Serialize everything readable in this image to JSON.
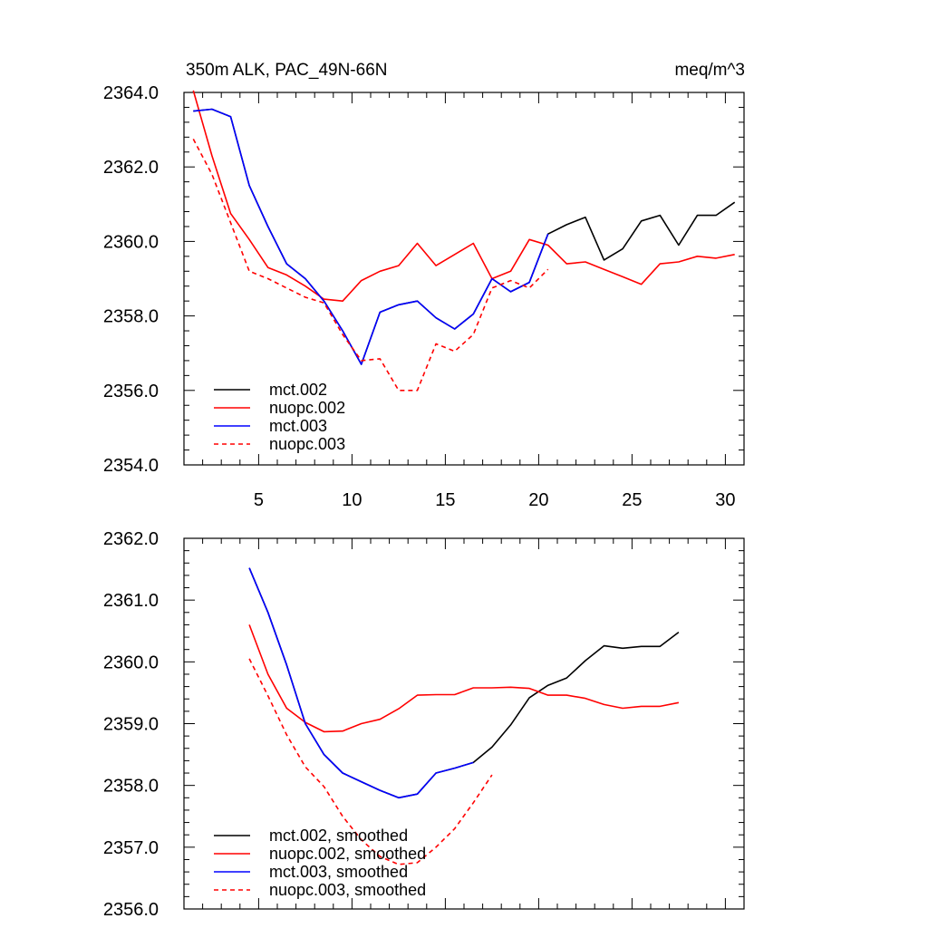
{
  "chart_data": [
    {
      "type": "line",
      "title": "350m ALK, PAC_49N-66N",
      "units": "meq/m^3",
      "xlabel": "",
      "ylabel": "",
      "xlim": [
        1,
        31
      ],
      "ylim": [
        2354.0,
        2364.0
      ],
      "xticks": [
        5,
        10,
        15,
        20,
        25,
        30
      ],
      "xticklabels": [
        "5",
        "10",
        "15",
        "20",
        "25",
        "30"
      ],
      "yticks": [
        2354.0,
        2356.0,
        2358.0,
        2360.0,
        2362.0,
        2364.0
      ],
      "yticklabels": [
        "2354.0",
        "2356.0",
        "2358.0",
        "2360.0",
        "2362.0",
        "2364.0"
      ],
      "legend_position": "bottom-left",
      "grid": false,
      "series": [
        {
          "name": "mct.002",
          "color": "#000000",
          "dash": "solid",
          "x": [
            1.5,
            2.5,
            3.5,
            4.5,
            5.5,
            6.5,
            7.5,
            8.5,
            9.5,
            10.5,
            11.5,
            12.5,
            13.5,
            14.5,
            15.5,
            16.5,
            17.5,
            18.5,
            19.5,
            20.5,
            21.5,
            22.5,
            23.5,
            24.5,
            25.5,
            26.5,
            27.5,
            28.5,
            29.5,
            30.5
          ],
          "y": [
            2363.5,
            2363.55,
            2363.35,
            2361.5,
            2360.4,
            2359.4,
            2359.0,
            2358.4,
            2357.6,
            2356.7,
            2358.1,
            2358.3,
            2358.4,
            2357.95,
            2357.65,
            2358.05,
            2359.0,
            2358.65,
            2358.9,
            2360.2,
            2360.45,
            2360.65,
            2359.5,
            2359.8,
            2360.55,
            2360.7,
            2359.9,
            2360.7,
            2360.7,
            2361.05
          ]
        },
        {
          "name": "nuopc.002",
          "color": "#ff0000",
          "dash": "solid",
          "x": [
            1.5,
            2.5,
            3.5,
            4.5,
            5.5,
            6.5,
            7.5,
            8.5,
            9.5,
            10.5,
            11.5,
            12.5,
            13.5,
            14.5,
            15.5,
            16.5,
            17.5,
            18.5,
            19.5,
            20.5,
            21.5,
            22.5,
            23.5,
            24.5,
            25.5,
            26.5,
            27.5,
            28.5,
            29.5,
            30.5
          ],
          "y": [
            2364.05,
            2362.3,
            2360.75,
            2360.05,
            2359.3,
            2359.1,
            2358.8,
            2358.45,
            2358.4,
            2358.95,
            2359.2,
            2359.35,
            2359.95,
            2359.35,
            2359.65,
            2359.95,
            2359.0,
            2359.2,
            2360.05,
            2359.9,
            2359.4,
            2359.45,
            2359.25,
            2359.05,
            2358.85,
            2359.4,
            2359.45,
            2359.6,
            2359.55,
            2359.65
          ]
        },
        {
          "name": "mct.003",
          "color": "#0000ff",
          "dash": "solid",
          "x": [
            1.5,
            2.5,
            3.5,
            4.5,
            5.5,
            6.5,
            7.5,
            8.5,
            9.5,
            10.5,
            11.5,
            12.5,
            13.5,
            14.5,
            15.5,
            16.5,
            17.5,
            18.5,
            19.5,
            20.5
          ],
          "y": [
            2363.5,
            2363.55,
            2363.35,
            2361.5,
            2360.4,
            2359.4,
            2359.0,
            2358.4,
            2357.6,
            2356.7,
            2358.1,
            2358.3,
            2358.4,
            2357.95,
            2357.65,
            2358.05,
            2359.0,
            2358.65,
            2358.9,
            2360.2
          ]
        },
        {
          "name": "nuopc.003",
          "color": "#ff0000",
          "dash": "dashed",
          "x": [
            1.5,
            2.5,
            3.5,
            4.5,
            5.5,
            6.5,
            7.5,
            8.5,
            9.5,
            10.5,
            11.5,
            12.5,
            13.5,
            14.5,
            15.5,
            16.5,
            17.5,
            18.5,
            19.5,
            20.5
          ],
          "y": [
            2362.75,
            2361.8,
            2360.5,
            2359.2,
            2359.0,
            2358.75,
            2358.5,
            2358.35,
            2357.5,
            2356.8,
            2356.85,
            2356.0,
            2356.0,
            2357.25,
            2357.05,
            2357.5,
            2358.75,
            2358.95,
            2358.75,
            2359.25
          ]
        }
      ]
    },
    {
      "type": "line",
      "title": "",
      "xlabel": "",
      "ylabel": "",
      "xlim": [
        1,
        31
      ],
      "ylim": [
        2356.0,
        2362.0
      ],
      "xticks": [
        5,
        10,
        15,
        20,
        25,
        30
      ],
      "xticklabels": [],
      "yticks": [
        2356.0,
        2357.0,
        2358.0,
        2359.0,
        2360.0,
        2361.0,
        2362.0
      ],
      "yticklabels": [
        "2356.0",
        "2357.0",
        "2358.0",
        "2359.0",
        "2360.0",
        "2361.0",
        "2362.0"
      ],
      "legend_position": "bottom-left",
      "grid": false,
      "series": [
        {
          "name": "mct.002, smoothed",
          "color": "#000000",
          "dash": "solid",
          "x": [
            4.5,
            5.5,
            6.5,
            7.5,
            8.5,
            9.5,
            10.5,
            11.5,
            12.5,
            13.5,
            14.5,
            15.5,
            16.5,
            17.5,
            18.5,
            19.5,
            20.5,
            21.5,
            22.5,
            23.5,
            24.5,
            25.5,
            26.5,
            27.5
          ],
          "y": [
            2361.52,
            2360.8,
            2359.95,
            2359.0,
            2358.5,
            2358.2,
            2358.06,
            2357.92,
            2357.8,
            2357.86,
            2358.2,
            2358.28,
            2358.37,
            2358.62,
            2358.98,
            2359.42,
            2359.62,
            2359.74,
            2360.02,
            2360.26,
            2360.22,
            2360.25,
            2360.25,
            2360.48
          ]
        },
        {
          "name": "nuopc.002, smoothed",
          "color": "#ff0000",
          "dash": "solid",
          "x": [
            4.5,
            5.5,
            6.5,
            7.5,
            8.5,
            9.5,
            10.5,
            11.5,
            12.5,
            13.5,
            14.5,
            15.5,
            16.5,
            17.5,
            18.5,
            19.5,
            20.5,
            21.5,
            22.5,
            23.5,
            24.5,
            25.5,
            26.5,
            27.5
          ],
          "y": [
            2360.6,
            2359.8,
            2359.25,
            2359.02,
            2358.87,
            2358.88,
            2359.0,
            2359.07,
            2359.24,
            2359.46,
            2359.47,
            2359.47,
            2359.58,
            2359.58,
            2359.59,
            2359.57,
            2359.46,
            2359.46,
            2359.41,
            2359.31,
            2359.25,
            2359.28,
            2359.28,
            2359.34
          ]
        },
        {
          "name": "mct.003, smoothed",
          "color": "#0000ff",
          "dash": "solid",
          "x": [
            4.5,
            5.5,
            6.5,
            7.5,
            8.5,
            9.5,
            10.5,
            11.5,
            12.5,
            13.5,
            14.5,
            15.5,
            16.5
          ],
          "y": [
            2361.52,
            2360.8,
            2359.95,
            2359.0,
            2358.5,
            2358.2,
            2358.06,
            2357.92,
            2357.8,
            2357.86,
            2358.2,
            2358.28,
            2358.37
          ]
        },
        {
          "name": "nuopc.003, smoothed",
          "color": "#ff0000",
          "dash": "dashed",
          "x": [
            4.5,
            5.5,
            6.5,
            7.5,
            8.5,
            9.5,
            10.5,
            11.5,
            12.5,
            13.5,
            14.5,
            15.5,
            16.5,
            17.5
          ],
          "y": [
            2360.05,
            2359.45,
            2358.82,
            2358.3,
            2357.98,
            2357.5,
            2357.12,
            2356.85,
            2356.72,
            2356.75,
            2357.0,
            2357.3,
            2357.72,
            2358.17
          ]
        }
      ]
    }
  ]
}
